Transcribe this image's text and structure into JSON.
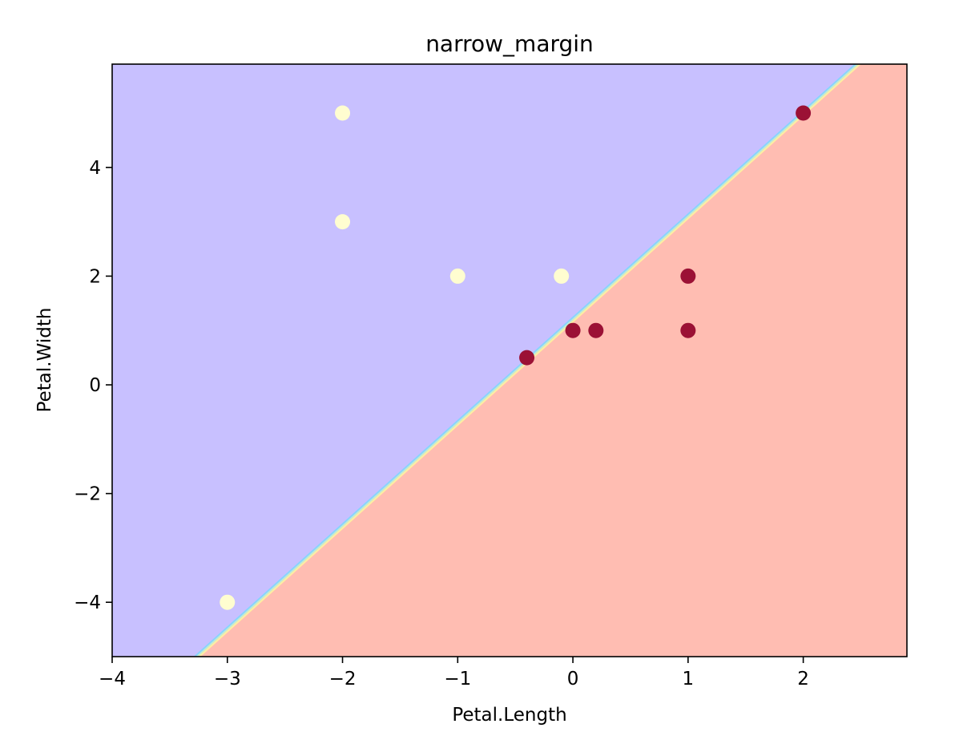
{
  "chart_data": {
    "type": "scatter",
    "title": "narrow_margin",
    "xlabel": "Petal.Length",
    "ylabel": "Petal.Width",
    "xlim": [
      -4,
      2.9
    ],
    "ylim": [
      -5,
      5.9
    ],
    "xticks": [
      -4,
      -3,
      -2,
      -1,
      0,
      1,
      2
    ],
    "yticks": [
      -4,
      -2,
      0,
      2,
      4
    ],
    "grid": false,
    "decision_regions": {
      "boundary": {
        "slope": 1.9,
        "intercept": 1.2
      },
      "upper_left_color": "#c8c0ff",
      "lower_right_color": "#ffbdb2"
    },
    "series": [
      {
        "color": "#fffdd0",
        "points": [
          {
            "x": -2,
            "y": 5
          },
          {
            "x": -2,
            "y": 3
          },
          {
            "x": -1,
            "y": 2
          },
          {
            "x": -0.1,
            "y": 2
          },
          {
            "x": -3,
            "y": -4
          }
        ]
      },
      {
        "color": "#9b1135",
        "points": [
          {
            "x": 2,
            "y": 5
          },
          {
            "x": 1,
            "y": 2
          },
          {
            "x": 0,
            "y": 1
          },
          {
            "x": 0.2,
            "y": 1
          },
          {
            "x": 1,
            "y": 1
          },
          {
            "x": -0.4,
            "y": 0.5
          }
        ]
      }
    ]
  }
}
